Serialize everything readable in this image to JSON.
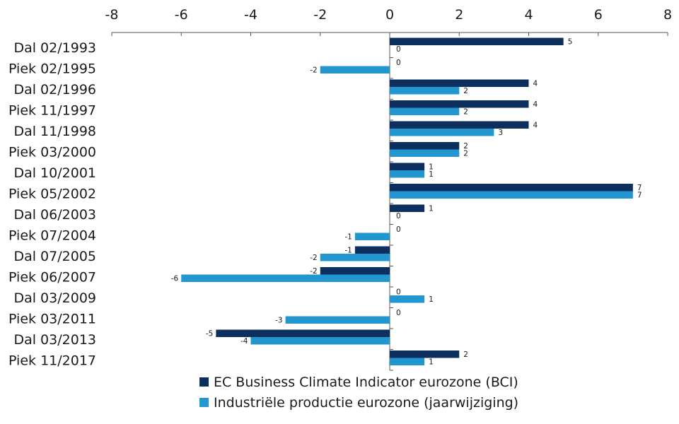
{
  "chart_data": {
    "type": "bar",
    "orientation": "horizontal",
    "title": "",
    "xlabel": "",
    "ylabel": "",
    "xlim": [
      -8,
      8
    ],
    "x_ticks": [
      "-8",
      "-6",
      "-4",
      "-2",
      "0",
      "2",
      "4",
      "6",
      "8"
    ],
    "grid": false,
    "legend_position": "bottom",
    "categories": [
      "Dal 02/1993",
      "Piek 02/1995",
      "Dal 02/1996",
      "Piek 11/1997",
      "Dal 11/1998",
      "Piek 03/2000",
      "Dal 10/2001",
      "Piek 05/2002",
      "Dal 06/2003",
      "Piek 07/2004",
      "Dal 07/2005",
      "Piek 06/2007",
      "Dal 03/2009",
      "Piek 03/2011",
      "Dal 03/2013",
      "Piek 11/2017"
    ],
    "series": [
      {
        "name": "EC Business Climate Indicator eurozone (BCI)",
        "color": "#0d2f5e",
        "values": [
          5,
          0,
          4,
          4,
          4,
          2,
          1,
          7,
          1,
          0,
          -1,
          -2,
          0,
          0,
          -5,
          2
        ],
        "labels": [
          "5",
          "0",
          "4",
          "4",
          "4",
          "2",
          "1",
          "7",
          "1",
          "0",
          "-1",
          "-2",
          "0",
          "0",
          "-5",
          "2"
        ]
      },
      {
        "name": "Industriële productie eurozone (jaarwijziging)",
        "color": "#2196cf",
        "values": [
          0,
          -2,
          2,
          2,
          3,
          2,
          1,
          7,
          0,
          -1,
          -2,
          -6,
          1,
          -3,
          -4,
          1
        ],
        "labels": [
          "0",
          "-2",
          "2",
          "2",
          "3",
          "2",
          "1",
          "7",
          "0",
          "-1",
          "-2",
          "-6",
          "1",
          "-3",
          "-4",
          "1"
        ]
      }
    ]
  }
}
